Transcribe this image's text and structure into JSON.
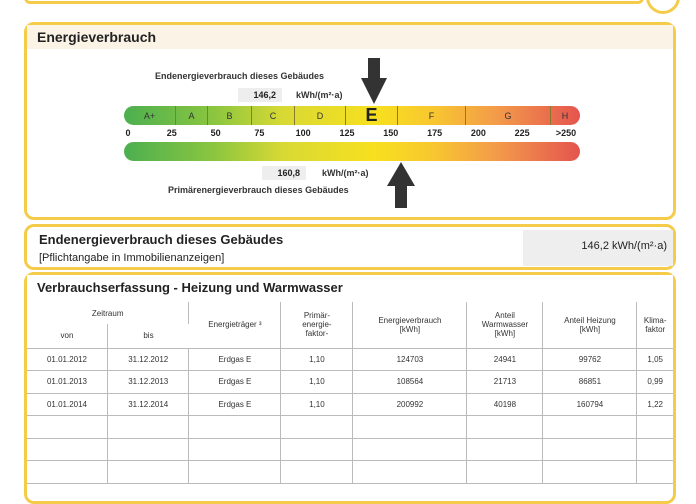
{
  "panel1": {
    "title": "Energieverbrauch",
    "end_label": "Endenergieverbrauch dieses Gebäudes",
    "end_value": "146,2",
    "unit": "kWh/(m²·a)",
    "prim_label": "Primärenergieverbrauch dieses Gebäudes",
    "prim_value": "160,8",
    "classes": [
      "A+",
      "A",
      "B",
      "C",
      "D",
      "E",
      "F",
      "G",
      "H"
    ],
    "active_class": "E",
    "ticks": [
      "0",
      "25",
      "50",
      "75",
      "100",
      "125",
      "150",
      "175",
      "200",
      "225",
      ">250"
    ]
  },
  "panel2": {
    "title": "Endenergieverbrauch dieses Gebäudes",
    "subtitle": "[Pflichtangabe in Immobilienanzeigen]",
    "value": "146,2 kWh/(m²·a)"
  },
  "panel3": {
    "title": "Verbrauchserfassung - Heizung und Warmwasser",
    "headers": {
      "zeitraum": "Zeitraum",
      "von": "von",
      "bis": "bis",
      "traeger": "Energieträger ³",
      "primaer": "Primär-\nenergie-\nfaktor-",
      "verbrauch": "Energieverbrauch\n[kWh]",
      "warmwasser": "Anteil\nWarmwasser\n[kWh]",
      "heizung": "Anteil Heizung\n[kWh]",
      "klima": "Klima-\nfaktor"
    },
    "rows": [
      [
        "01.01.2012",
        "31.12.2012",
        "Erdgas E",
        "1,10",
        "124703",
        "24941",
        "99762",
        "1,05"
      ],
      [
        "01.01.2013",
        "31.12.2013",
        "Erdgas E",
        "1,10",
        "108564",
        "21713",
        "86851",
        "0,99"
      ],
      [
        "01.01.2014",
        "31.12.2014",
        "Erdgas E",
        "1,10",
        "200992",
        "40198",
        "160794",
        "1,22"
      ]
    ]
  },
  "colors": {
    "border": "#f5cc4a",
    "header_bg": "#fbf3e6"
  }
}
